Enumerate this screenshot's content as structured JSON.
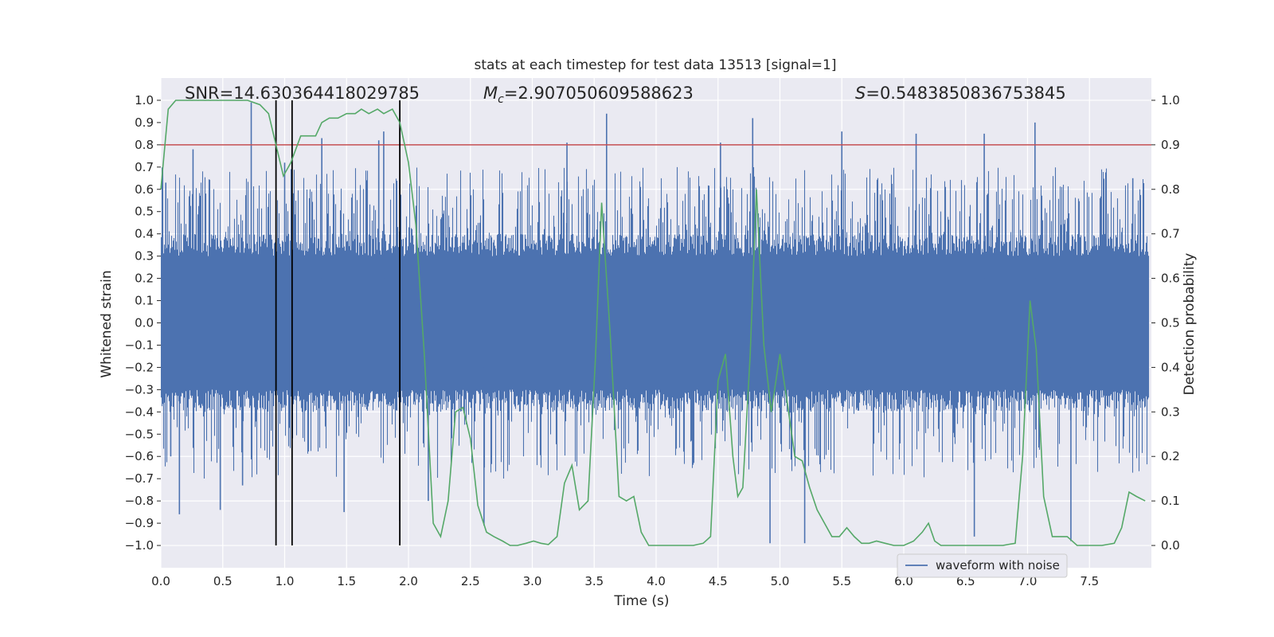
{
  "chart_data": {
    "type": "line",
    "title": "stats at each timestep for test data 13513 [signal=1]",
    "xlabel": "Time (s)",
    "ylabel_left": "Whitened strain",
    "ylabel_right": "Detection probability",
    "xlim": [
      0.0,
      8.0
    ],
    "ylim_left": [
      -1.1,
      1.1
    ],
    "ylim_right": [
      -0.05,
      1.05
    ],
    "xticks": [
      0.0,
      0.5,
      1.0,
      1.5,
      2.0,
      2.5,
      3.0,
      3.5,
      4.0,
      4.5,
      5.0,
      5.5,
      6.0,
      6.5,
      7.0,
      7.5
    ],
    "xtick_labels": [
      "0.0",
      "0.5",
      "1.0",
      "1.5",
      "2.0",
      "2.5",
      "3.0",
      "3.5",
      "4.0",
      "4.5",
      "5.0",
      "5.5",
      "6.0",
      "6.5",
      "7.0",
      "7.5"
    ],
    "yticks_left": [
      1.0,
      0.9,
      0.8,
      0.7,
      0.6,
      0.5,
      0.4,
      0.3,
      0.2,
      0.1,
      0.0,
      -0.1,
      -0.2,
      -0.3,
      -0.4,
      -0.5,
      -0.6,
      -0.7,
      -0.8,
      -0.9,
      -1.0
    ],
    "ytick_labels_left": [
      "1.0",
      "0.9",
      "0.8",
      "0.7",
      "0.6",
      "0.5",
      "0.4",
      "0.3",
      "0.2",
      "0.1",
      "0.0",
      "−0.1",
      "−0.2",
      "−0.3",
      "−0.4",
      "−0.5",
      "−0.6",
      "−0.7",
      "−0.8",
      "−0.9",
      "−1.0"
    ],
    "yticks_right": [
      1.0,
      0.9,
      0.8,
      0.7,
      0.6,
      0.5,
      0.4,
      0.3,
      0.2,
      0.1,
      0.0
    ],
    "ytick_labels_right": [
      "1.0",
      "0.9",
      "0.8",
      "0.7",
      "0.6",
      "0.5",
      "0.4",
      "0.3",
      "0.2",
      "0.1",
      "0.0"
    ],
    "grid": true,
    "legend": {
      "position": "bottom-right",
      "entries": [
        {
          "label": "waveform with noise",
          "color": "#4c72b0"
        }
      ]
    },
    "annotations": {
      "snr": "SNR=14.630364418029785",
      "mc_symbol": "M",
      "mc_subscript": "c",
      "mc_value": "=2.907050609588623",
      "s_symbol": "S",
      "s_value": "=0.5483850836753845"
    },
    "threshold_left": 0.8,
    "threshold_color": "#c44e52",
    "event_lines_x": [
      0.93,
      1.06,
      1.93
    ],
    "event_lines_range": [
      -1.0,
      1.0
    ],
    "waveform": {
      "name": "waveform with noise",
      "color": "#4c72b0",
      "duration": 8.0,
      "core_envelope": 0.4,
      "spike_peaks": [
        {
          "x": 0.04,
          "y": 0.63
        },
        {
          "x": 0.08,
          "y": -0.6
        },
        {
          "x": 0.26,
          "y": 0.78
        },
        {
          "x": 0.15,
          "y": -0.86
        },
        {
          "x": 0.48,
          "y": -0.84
        },
        {
          "x": 0.66,
          "y": -0.73
        },
        {
          "x": 0.73,
          "y": 0.99
        },
        {
          "x": 1.0,
          "y": 0.72
        },
        {
          "x": 1.3,
          "y": 0.83
        },
        {
          "x": 1.48,
          "y": -0.85
        },
        {
          "x": 1.76,
          "y": 0.82
        },
        {
          "x": 1.8,
          "y": 0.86
        },
        {
          "x": 1.93,
          "y": -0.89
        },
        {
          "x": 2.16,
          "y": -0.8
        },
        {
          "x": 2.61,
          "y": -0.91
        },
        {
          "x": 3.28,
          "y": 0.81
        },
        {
          "x": 3.6,
          "y": 0.94
        },
        {
          "x": 4.52,
          "y": 0.81
        },
        {
          "x": 4.78,
          "y": 0.92
        },
        {
          "x": 4.92,
          "y": -0.99
        },
        {
          "x": 5.2,
          "y": -0.99
        },
        {
          "x": 5.5,
          "y": 0.86
        },
        {
          "x": 6.1,
          "y": 0.85
        },
        {
          "x": 6.57,
          "y": -0.96
        },
        {
          "x": 6.65,
          "y": 0.85
        },
        {
          "x": 7.06,
          "y": 0.9
        },
        {
          "x": 7.35,
          "y": -0.98
        },
        {
          "x": 7.85,
          "y": 0.65
        }
      ]
    },
    "detection_probability": {
      "color": "#55a868",
      "x": [
        0.0,
        0.06,
        0.12,
        0.2,
        0.3,
        0.4,
        0.5,
        0.6,
        0.7,
        0.8,
        0.87,
        0.93,
        0.99,
        1.05,
        1.13,
        1.25,
        1.3,
        1.36,
        1.43,
        1.5,
        1.57,
        1.62,
        1.68,
        1.75,
        1.8,
        1.87,
        1.93,
        2.0,
        2.06,
        2.13,
        2.2,
        2.26,
        2.32,
        2.38,
        2.44,
        2.5,
        2.56,
        2.63,
        2.69,
        2.76,
        2.82,
        2.88,
        2.95,
        3.01,
        3.07,
        3.13,
        3.2,
        3.26,
        3.32,
        3.38,
        3.45,
        3.51,
        3.56,
        3.63,
        3.7,
        3.76,
        3.82,
        3.88,
        3.94,
        4.0,
        4.1,
        4.2,
        4.3,
        4.38,
        4.44,
        4.5,
        4.56,
        4.62,
        4.66,
        4.7,
        4.76,
        4.81,
        4.87,
        4.93,
        5.0,
        5.06,
        5.12,
        5.18,
        5.24,
        5.3,
        5.36,
        5.42,
        5.48,
        5.54,
        5.6,
        5.66,
        5.72,
        5.78,
        5.85,
        5.92,
        6.0,
        6.08,
        6.15,
        6.2,
        6.25,
        6.3,
        6.4,
        6.5,
        6.6,
        6.7,
        6.8,
        6.9,
        6.96,
        7.02,
        7.07,
        7.13,
        7.2,
        7.26,
        7.32,
        7.4,
        7.5,
        7.6,
        7.7,
        7.76,
        7.82,
        7.88,
        7.95
      ],
      "y": [
        0.8,
        0.98,
        1.0,
        1.0,
        1.0,
        1.0,
        1.0,
        1.0,
        1.0,
        0.99,
        0.97,
        0.9,
        0.83,
        0.86,
        0.92,
        0.92,
        0.95,
        0.96,
        0.96,
        0.97,
        0.97,
        0.98,
        0.97,
        0.98,
        0.97,
        0.98,
        0.95,
        0.86,
        0.72,
        0.42,
        0.05,
        0.02,
        0.1,
        0.3,
        0.31,
        0.24,
        0.09,
        0.03,
        0.02,
        0.01,
        0.0,
        0.0,
        0.005,
        0.01,
        0.005,
        0.002,
        0.02,
        0.14,
        0.18,
        0.08,
        0.1,
        0.42,
        0.77,
        0.47,
        0.11,
        0.1,
        0.11,
        0.03,
        0.0,
        0.0,
        0.0,
        0.0,
        0.0,
        0.005,
        0.02,
        0.37,
        0.43,
        0.2,
        0.11,
        0.13,
        0.43,
        0.8,
        0.45,
        0.3,
        0.43,
        0.32,
        0.2,
        0.19,
        0.13,
        0.08,
        0.05,
        0.02,
        0.02,
        0.04,
        0.02,
        0.005,
        0.005,
        0.01,
        0.005,
        0.0,
        0.0,
        0.01,
        0.03,
        0.05,
        0.01,
        0.0,
        0.0,
        0.0,
        0.0,
        0.0,
        0.0,
        0.005,
        0.2,
        0.55,
        0.44,
        0.11,
        0.02,
        0.02,
        0.02,
        0.0,
        0.0,
        0.0,
        0.005,
        0.04,
        0.12,
        0.11,
        0.1
      ]
    }
  }
}
